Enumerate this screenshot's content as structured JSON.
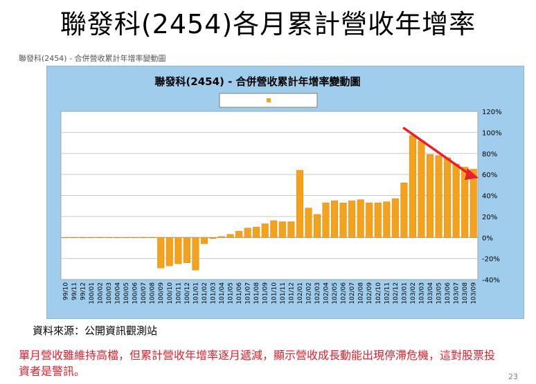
{
  "slide": {
    "title": "聯發科(2454)各月累計營收年增率",
    "source": "資料來源：公開資訊觀測站",
    "note": "單月營收雖維持高檔，但累計營收年增率逐月遞減，顯示營收成長動能出現停滯危機，這對股票投資者是警訊。",
    "page_number": "23"
  },
  "chart_data": {
    "type": "bar",
    "caption": "聯發科(2454)  -  合併營收累計年增率變動圖",
    "title": "聯發科(2454)  -  合併營收累計年增率變動圖",
    "legend_position": "top-center",
    "y_axis_side": "right",
    "ylim": [
      -40,
      120
    ],
    "yticks": [
      "120%",
      "100%",
      "80%",
      "60%",
      "40%",
      "20%",
      "0%",
      "-20%",
      "-40%"
    ],
    "grid": true,
    "colors": {
      "bar": "#f4a11c",
      "bar_edge": "#d9850f",
      "trend_arrow": "#e8202a",
      "panel": "#9fcdeb",
      "plot": "#ffffff"
    },
    "categories": [
      "99/10",
      "99/11",
      "99/12",
      "100/01",
      "100/02",
      "100/03",
      "100/04",
      "100/05",
      "100/06",
      "100/07",
      "100/08",
      "100/09",
      "100/10",
      "100/11",
      "100/12",
      "101/01",
      "101/02",
      "101/03",
      "101/04",
      "101/05",
      "101/06",
      "101/07",
      "101/08",
      "101/09",
      "101/10",
      "101/11",
      "101/12",
      "102/01",
      "102/02",
      "102/03",
      "102/04",
      "102/05",
      "102/06",
      "102/07",
      "102/08",
      "102/09",
      "102/10",
      "102/11",
      "102/12",
      "103/01",
      "103/02",
      "103/03",
      "103/04",
      "103/05",
      "103/06",
      "103/07",
      "103/08",
      "103/09"
    ],
    "values": [
      0,
      0,
      0,
      0,
      0,
      0,
      0,
      0,
      0,
      0,
      0,
      -29,
      -27,
      -25,
      -24,
      -31,
      -6,
      -1,
      1,
      3,
      6,
      9,
      10,
      13,
      16,
      15,
      15,
      64,
      28,
      22,
      33,
      35,
      33,
      35,
      36,
      33,
      33,
      34,
      37,
      52,
      97,
      92,
      79,
      78,
      76,
      70,
      67,
      65
    ]
  }
}
